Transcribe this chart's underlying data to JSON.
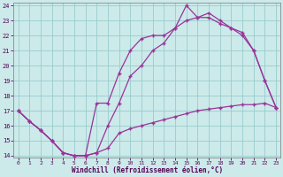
{
  "xlabel": "Windchill (Refroidissement éolien,°C)",
  "bg_color": "#cceaea",
  "line_color": "#993399",
  "grid_color": "#99cccc",
  "xlim": [
    -0.4,
    23.4
  ],
  "ylim": [
    13.9,
    24.2
  ],
  "xticks": [
    0,
    1,
    2,
    3,
    4,
    5,
    6,
    7,
    8,
    9,
    10,
    11,
    12,
    13,
    14,
    15,
    16,
    17,
    18,
    19,
    20,
    21,
    22,
    23
  ],
  "yticks": [
    14,
    15,
    16,
    17,
    18,
    19,
    20,
    21,
    22,
    23,
    24
  ],
  "line1_x": [
    0,
    1,
    2,
    3,
    4,
    5,
    6,
    7,
    8,
    9,
    10,
    11,
    12,
    13,
    14,
    15,
    16,
    17,
    18,
    19,
    20,
    21,
    22,
    23
  ],
  "line1_y": [
    17.0,
    16.3,
    15.7,
    15.0,
    14.2,
    14.0,
    14.0,
    14.2,
    14.5,
    15.5,
    15.8,
    16.0,
    16.2,
    16.4,
    16.6,
    16.8,
    17.0,
    17.1,
    17.2,
    17.3,
    17.4,
    17.4,
    17.5,
    17.2
  ],
  "line2_x": [
    0,
    1,
    2,
    3,
    4,
    5,
    6,
    7,
    8,
    9,
    10,
    11,
    12,
    13,
    14,
    15,
    16,
    17,
    18,
    19,
    20,
    21,
    22,
    23
  ],
  "line2_y": [
    17.0,
    16.3,
    15.7,
    15.0,
    14.2,
    14.0,
    14.0,
    14.2,
    16.0,
    17.5,
    19.3,
    20.0,
    21.0,
    21.5,
    22.5,
    23.0,
    23.2,
    23.2,
    22.8,
    22.5,
    22.0,
    21.0,
    19.0,
    17.2
  ],
  "line3_x": [
    0,
    1,
    2,
    3,
    4,
    5,
    6,
    7,
    8,
    9,
    10,
    11,
    12,
    13,
    14,
    15,
    16,
    17,
    18,
    19,
    20,
    21,
    22,
    23
  ],
  "line3_y": [
    17.0,
    16.3,
    15.7,
    15.0,
    14.2,
    14.0,
    14.0,
    17.5,
    17.5,
    19.5,
    21.0,
    21.8,
    22.0,
    22.0,
    22.5,
    24.0,
    23.2,
    23.5,
    23.0,
    22.5,
    22.2,
    21.0,
    19.0,
    17.2
  ]
}
